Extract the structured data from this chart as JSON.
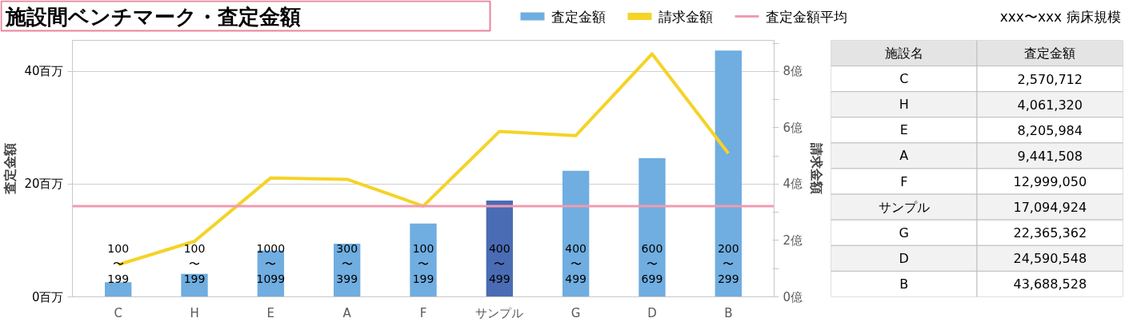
{
  "chart_data": {
    "type": "bar",
    "title": "施設間ベンチマーク・査定金額",
    "categories": [
      "C",
      "H",
      "E",
      "A",
      "F",
      "サンプル",
      "G",
      "D",
      "B"
    ],
    "series": [
      {
        "name": "査定金額",
        "colors": [
          "#70ade0",
          "#70ade0",
          "#70ade0",
          "#70ade0",
          "#70ade0",
          "#4a6cb4",
          "#70ade0",
          "#70ade0",
          "#70ade0"
        ],
        "values": [
          2.57,
          4.06,
          8.21,
          9.44,
          13.0,
          17.09,
          22.37,
          24.59,
          43.69
        ]
      },
      {
        "name": "請求金額",
        "type": "line",
        "axis": "y2",
        "color": "#f5d327",
        "values": [
          1.14,
          1.97,
          4.22,
          4.17,
          3.22,
          5.87,
          5.72,
          8.62,
          5.09
        ]
      }
    ],
    "ylabel": "査定金額",
    "y2label": "請求金額",
    "ylim": [
      0,
      45.5
    ],
    "yticks": [
      {
        "value": 0,
        "label": "0百万"
      },
      {
        "value": 20,
        "label": "20百万"
      },
      {
        "value": 40,
        "label": "40百万"
      }
    ],
    "y2lim": [
      0,
      9.1
    ],
    "y2ticks": [
      {
        "value": 0,
        "label": "0億"
      },
      {
        "value": 1,
        "label": null
      },
      {
        "value": 2,
        "label": "2億"
      },
      {
        "value": 3,
        "label": null
      },
      {
        "value": 4,
        "label": "4億"
      },
      {
        "value": 5,
        "label": null
      },
      {
        "value": 6,
        "label": "6億"
      },
      {
        "value": 7,
        "label": null
      },
      {
        "value": 8,
        "label": "8億"
      },
      {
        "value": 9,
        "label": null
      }
    ],
    "ref_lines": [
      {
        "axis": "y",
        "value": 16.1,
        "label": "査定金額平均",
        "color": "#f09bb0"
      }
    ],
    "grid": "y",
    "legend": "top",
    "annotations": [
      "施設名",
      "xxx〜xxx 病床規模",
      "100\n〜\n199",
      "100\n〜\n199",
      "1000\n〜\n1099",
      "300\n〜\n399",
      "100\n〜\n199",
      "400\n〜\n499",
      "400\n〜\n499",
      "600\n〜\n699",
      "200\n〜\n299",
      "2,570,712",
      "4,061,320",
      "8,205,984",
      "9,441,508",
      "12,999,050",
      "17,094,924",
      "22,365,362",
      "24,590,548",
      "43,688,528"
    ]
  }
}
